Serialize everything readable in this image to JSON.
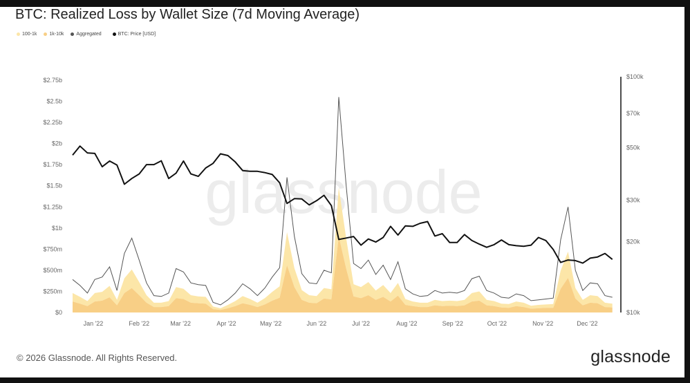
{
  "title": "BTC: Realized Loss by Wallet Size (7d Moving Average)",
  "legend": [
    {
      "label": "100-1k",
      "color": "#fce6a8"
    },
    {
      "label": "1k-10k",
      "color": "#f8cf86"
    },
    {
      "label": "Aggregated",
      "color": "#555555"
    },
    {
      "label": "BTC: Price [USD]",
      "color": "#111111"
    }
  ],
  "watermark": "glassnode",
  "footer": {
    "copyright": "© 2026 Glassnode. All Rights Reserved.",
    "logo": "glassnode"
  },
  "chart_data": {
    "type": "area",
    "title": "BTC: Realized Loss by Wallet Size (7d Moving Average)",
    "left_axis": {
      "scale": "linear",
      "range_musd": [
        0,
        2750
      ],
      "ticks": [
        "$0",
        "$250m",
        "$500m",
        "$750m",
        "$1b",
        "$1.25b",
        "$1.5b",
        "$1.75b",
        "$2b",
        "$2.25b",
        "$2.5b",
        "$2.75b"
      ],
      "tick_values": [
        0,
        250,
        500,
        750,
        1000,
        1250,
        1500,
        1750,
        2000,
        2250,
        2500,
        2750
      ]
    },
    "right_axis": {
      "scale": "log",
      "range_usd": [
        10000,
        100000
      ],
      "ticks": [
        "$10k",
        "$20k",
        "$30k",
        "$50k",
        "$70k",
        "$100k"
      ],
      "tick_values": [
        10000,
        20000,
        30000,
        50000,
        70000,
        100000
      ]
    },
    "x_axis": {
      "ticks": [
        "Jan '22",
        "Feb '22",
        "Mar '22",
        "Apr '22",
        "May '22",
        "Jun '22",
        "Jul '22",
        "Aug '22",
        "Sep '22",
        "Oct '22",
        "Nov '22",
        "Dec '22"
      ],
      "tick_dates": [
        "2022-01-01",
        "2022-02-01",
        "2022-03-01",
        "2022-04-01",
        "2022-05-01",
        "2022-06-01",
        "2022-07-01",
        "2022-08-01",
        "2022-09-01",
        "2022-10-01",
        "2022-11-01",
        "2022-12-01"
      ],
      "range": [
        "2021-12-18",
        "2022-12-20"
      ]
    },
    "grid": false,
    "legend_position": "top-left",
    "x": [
      "2021-12-18",
      "2021-12-23",
      "2021-12-28",
      "2022-01-02",
      "2022-01-07",
      "2022-01-12",
      "2022-01-17",
      "2022-01-22",
      "2022-01-27",
      "2022-02-01",
      "2022-02-06",
      "2022-02-11",
      "2022-02-16",
      "2022-02-21",
      "2022-02-26",
      "2022-03-03",
      "2022-03-08",
      "2022-03-13",
      "2022-03-18",
      "2022-03-23",
      "2022-03-28",
      "2022-04-02",
      "2022-04-07",
      "2022-04-12",
      "2022-04-17",
      "2022-04-22",
      "2022-04-27",
      "2022-05-02",
      "2022-05-07",
      "2022-05-12",
      "2022-05-17",
      "2022-05-22",
      "2022-05-27",
      "2022-06-01",
      "2022-06-06",
      "2022-06-11",
      "2022-06-16",
      "2022-06-21",
      "2022-06-26",
      "2022-07-01",
      "2022-07-06",
      "2022-07-11",
      "2022-07-16",
      "2022-07-21",
      "2022-07-26",
      "2022-07-31",
      "2022-08-05",
      "2022-08-10",
      "2022-08-15",
      "2022-08-20",
      "2022-08-25",
      "2022-08-30",
      "2022-09-04",
      "2022-09-09",
      "2022-09-14",
      "2022-09-19",
      "2022-09-24",
      "2022-09-29",
      "2022-10-04",
      "2022-10-09",
      "2022-10-14",
      "2022-10-19",
      "2022-10-24",
      "2022-10-29",
      "2022-11-03",
      "2022-11-08",
      "2022-11-13",
      "2022-11-18",
      "2022-11-23",
      "2022-11-28",
      "2022-12-03",
      "2022-12-08",
      "2022-12-13",
      "2022-12-18"
    ],
    "series": [
      {
        "name": "1k-10k",
        "axis": "left",
        "unit": "USD millions",
        "style": "stacked-area",
        "color": "#f8cf86",
        "values": [
          130,
          105,
          75,
          130,
          140,
          180,
          85,
          230,
          290,
          205,
          115,
          65,
          65,
          75,
          170,
          160,
          115,
          110,
          105,
          40,
          30,
          50,
          75,
          110,
          90,
          65,
          95,
          140,
          175,
          560,
          300,
          150,
          115,
          110,
          165,
          155,
          900,
          520,
          190,
          170,
          205,
          150,
          185,
          130,
          200,
          90,
          75,
          65,
          65,
          85,
          75,
          80,
          75,
          85,
          130,
          140,
          85,
          75,
          60,
          55,
          75,
          65,
          45,
          50,
          55,
          55,
          280,
          410,
          165,
          85,
          115,
          110,
          65,
          60
        ]
      },
      {
        "name": "100-1k",
        "axis": "left",
        "unit": "USD millions",
        "style": "stacked-area",
        "color": "#fce6a8",
        "values": [
          100,
          80,
          60,
          100,
          105,
          135,
          65,
          175,
          220,
          155,
          90,
          50,
          50,
          60,
          130,
          120,
          90,
          80,
          80,
          30,
          20,
          40,
          60,
          85,
          70,
          50,
          75,
          105,
          135,
          390,
          225,
          115,
          90,
          85,
          125,
          120,
          580,
          360,
          145,
          130,
          155,
          110,
          140,
          100,
          150,
          70,
          55,
          50,
          50,
          65,
          60,
          60,
          60,
          65,
          100,
          110,
          65,
          60,
          45,
          45,
          55,
          50,
          35,
          40,
          40,
          45,
          215,
          310,
          125,
          65,
          90,
          85,
          50,
          45
        ]
      },
      {
        "name": "Aggregated",
        "axis": "left",
        "unit": "USD millions",
        "style": "line",
        "color": "#555555",
        "values": [
          390,
          320,
          230,
          390,
          420,
          540,
          260,
          700,
          880,
          620,
          350,
          200,
          190,
          230,
          520,
          480,
          350,
          330,
          320,
          120,
          90,
          150,
          230,
          340,
          280,
          200,
          290,
          420,
          530,
          1600,
          900,
          460,
          350,
          340,
          500,
          470,
          2550,
          1500,
          580,
          520,
          620,
          450,
          560,
          390,
          600,
          280,
          220,
          190,
          200,
          260,
          230,
          240,
          230,
          260,
          400,
          430,
          260,
          230,
          180,
          170,
          220,
          200,
          140,
          150,
          160,
          170,
          860,
          1250,
          500,
          260,
          350,
          340,
          200,
          180
        ]
      },
      {
        "name": "BTC: Price [USD]",
        "axis": "right",
        "unit": "USD",
        "style": "line",
        "color": "#111111",
        "values": [
          46500,
          50800,
          47500,
          47300,
          41500,
          43900,
          42200,
          35000,
          37000,
          38700,
          42400,
          42400,
          44000,
          37000,
          39000,
          43900,
          38700,
          37800,
          41000,
          42900,
          47100,
          46300,
          43500,
          40000,
          39700,
          39700,
          39200,
          38500,
          35500,
          29000,
          30400,
          30300,
          28600,
          29800,
          31400,
          28400,
          20400,
          20700,
          21000,
          19300,
          20500,
          19900,
          20800,
          23200,
          21300,
          23300,
          23200,
          23900,
          24300,
          21100,
          21600,
          19800,
          19800,
          21400,
          20200,
          19500,
          18900,
          19400,
          20300,
          19400,
          19200,
          19100,
          19300,
          20800,
          20200,
          18500,
          16300,
          16700,
          16600,
          16200,
          17000,
          17200,
          17800,
          16800
        ]
      }
    ]
  }
}
